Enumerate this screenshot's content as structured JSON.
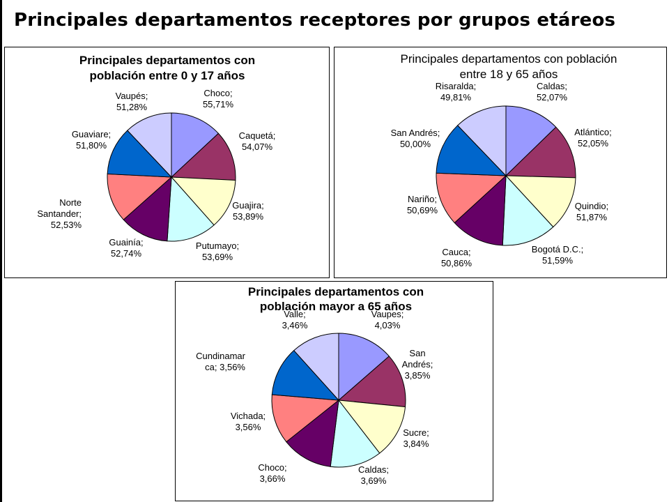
{
  "slide": {
    "title": "Principales departamentos receptores por grupos etáreos"
  },
  "colors": {
    "palette": [
      "#9999FF",
      "#993366",
      "#FFFFCC",
      "#CCFFFF",
      "#660066",
      "#FF8080",
      "#0066CC",
      "#CCCCFF"
    ],
    "border": "#000000"
  },
  "chart_data": [
    {
      "type": "pie",
      "title": "Principales departamentos con población entre 0 y 17 años",
      "title_lines": [
        "Principales departamentos con",
        "población entre 0 y 17 años"
      ],
      "title_bold": true,
      "categories": [
        "Choco",
        "Caquetá",
        "Guajira",
        "Putumayo",
        "Guainía",
        "Norte Santander",
        "Guaviare",
        "Vaupés"
      ],
      "values": [
        55.71,
        54.07,
        53.89,
        53.69,
        52.74,
        52.53,
        51.8,
        51.28
      ],
      "label_lines": [
        [
          "Choco;",
          "55,71%"
        ],
        [
          "Caquetá;",
          "54,07%"
        ],
        [
          "Guajira;",
          "53,89%"
        ],
        [
          "Putumayo;",
          "53,69%"
        ],
        [
          "Guainía;",
          "52,74%"
        ],
        [
          "Norte",
          "Santander;",
          "52,53%"
        ],
        [
          "Guaviare;",
          "51,80%"
        ],
        [
          "Vaupés;",
          "51,28%"
        ]
      ]
    },
    {
      "type": "pie",
      "title": "Principales departamentos con población entre 18 y 65 años",
      "title_lines": [
        "Principales departamentos con población",
        "entre 18 y 65 años"
      ],
      "title_bold": false,
      "categories": [
        "Caldas",
        "Atlántico",
        "Quindio",
        "Bogotá D.C.",
        "Cauca",
        "Nariño",
        "San Andrés",
        "Risaralda"
      ],
      "values": [
        52.07,
        52.05,
        51.87,
        51.59,
        50.86,
        50.69,
        50.0,
        49.81
      ],
      "label_lines": [
        [
          "Caldas;",
          "52,07%"
        ],
        [
          "Atlántico;",
          "52,05%"
        ],
        [
          "Quindio;",
          "51,87%"
        ],
        [
          "Bogotá D.C.;",
          "51,59%"
        ],
        [
          "Cauca;",
          "50,86%"
        ],
        [
          "Nariño;",
          "50,69%"
        ],
        [
          "San Andrés;",
          "50,00%"
        ],
        [
          "Risaralda;",
          "49,81%"
        ]
      ]
    },
    {
      "type": "pie",
      "title": "Principales departamentos con población mayor a 65 años",
      "title_lines": [
        "Principales departamentos con",
        "población mayor a 65 años"
      ],
      "title_bold": true,
      "categories": [
        "Vaupes",
        "San Andrés",
        "Sucre",
        "Caldas",
        "Choco",
        "Vichada",
        "Cundinamarca",
        "Valle"
      ],
      "values": [
        4.03,
        3.85,
        3.84,
        3.69,
        3.66,
        3.56,
        3.56,
        3.46
      ],
      "label_lines": [
        [
          "Vaupes;",
          "4,03%"
        ],
        [
          "San",
          "Andrés;",
          "3,85%"
        ],
        [
          "Sucre;",
          "3,84%"
        ],
        [
          "Caldas;",
          "3,69%"
        ],
        [
          "Choco;",
          "3,66%"
        ],
        [
          "Vichada;",
          "3,56%"
        ],
        [
          "Cundinamar",
          "ca; 3,56%"
        ],
        [
          "Valle;",
          "3,46%"
        ]
      ]
    }
  ]
}
